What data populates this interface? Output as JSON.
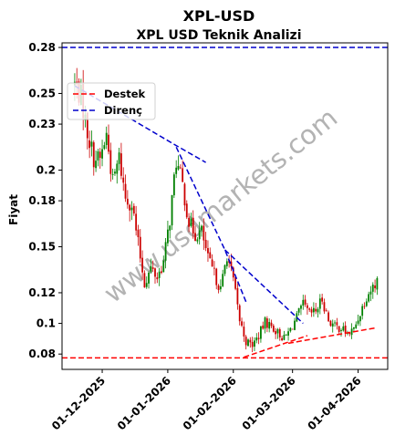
{
  "chart_data": {
    "type": "candlestick",
    "title": "XPL-USD",
    "subtitle": "XPL USD Teknik Analizi",
    "ylabel": "Fiyat",
    "xlabel": "",
    "watermark": "www.usdmarkets.com",
    "ylim": [
      0.07,
      0.283
    ],
    "x_start": "2025-11-12",
    "x_end": "2026-04-15",
    "y_ticks": [
      {
        "value": 0.08,
        "label": "0.08"
      },
      {
        "value": 0.1,
        "label": "0.1"
      },
      {
        "value": 0.12,
        "label": "0.12"
      },
      {
        "value": 0.15,
        "label": "0.15"
      },
      {
        "value": 0.18,
        "label": "0.18"
      },
      {
        "value": 0.2,
        "label": "0.2"
      },
      {
        "value": 0.23,
        "label": "0.23"
      },
      {
        "value": 0.25,
        "label": "0.25"
      },
      {
        "value": 0.28,
        "label": "0.28"
      }
    ],
    "x_ticks": [
      {
        "date": "2025-12-01",
        "label": "01-12-2025"
      },
      {
        "date": "2026-01-01",
        "label": "01-01-2026"
      },
      {
        "date": "2026-02-01",
        "label": "01-02-2026"
      },
      {
        "date": "2026-03-01",
        "label": "01-03-2026"
      },
      {
        "date": "2026-04-01",
        "label": "01-04-2026"
      }
    ],
    "legend": {
      "placement": "upper-left",
      "entries": [
        {
          "name": "Destek",
          "color": "#ff0000",
          "style": "dashed"
        },
        {
          "name": "Direnç",
          "color": "#0000cc",
          "style": "dashed"
        }
      ]
    },
    "colors": {
      "up": "#008000",
      "down": "#cc0000",
      "support": "#ff0000",
      "resistance": "#0000cc"
    },
    "horizontal_lines": [
      {
        "name": "Direnç",
        "y": 0.28,
        "color": "#0000cc"
      },
      {
        "name": "Destek",
        "y": 0.0775,
        "color": "#ff0000"
      }
    ],
    "trend_lines": [
      {
        "name": "Direnç",
        "color": "#0000cc",
        "points": [
          [
            "2025-11-18",
            0.255
          ],
          [
            "2026-01-05",
            0.216
          ],
          [
            "2026-01-19",
            0.205
          ]
        ]
      },
      {
        "name": "Direnç",
        "color": "#0000cc",
        "points": [
          [
            "2026-01-05",
            0.215
          ],
          [
            "2026-01-28",
            0.148
          ],
          [
            "2026-02-07",
            0.114
          ]
        ]
      },
      {
        "name": "Direnç",
        "color": "#0000cc",
        "points": [
          [
            "2026-01-28",
            0.148
          ],
          [
            "2026-03-06",
            0.1
          ]
        ]
      },
      {
        "name": "Destek",
        "color": "#ff0000",
        "points": [
          [
            "2026-02-06",
            0.078
          ],
          [
            "2026-03-08",
            0.092
          ]
        ]
      },
      {
        "name": "Destek",
        "color": "#ff0000",
        "points": [
          [
            "2026-02-27",
            0.087
          ],
          [
            "2026-04-09",
            0.097
          ]
        ]
      }
    ],
    "closes": [
      [
        "2025-11-18",
        0.256
      ],
      [
        "2025-11-21",
        0.248
      ],
      [
        "2025-11-24",
        0.225
      ],
      [
        "2025-11-27",
        0.208
      ],
      [
        "2025-11-30",
        0.207
      ],
      [
        "2025-12-03",
        0.223
      ],
      [
        "2025-12-06",
        0.192
      ],
      [
        "2025-12-09",
        0.208
      ],
      [
        "2025-12-12",
        0.182
      ],
      [
        "2025-12-15",
        0.178
      ],
      [
        "2025-12-18",
        0.152
      ],
      [
        "2025-12-21",
        0.126
      ],
      [
        "2025-12-24",
        0.136
      ],
      [
        "2025-12-27",
        0.13
      ],
      [
        "2025-12-30",
        0.14
      ],
      [
        "2026-01-02",
        0.168
      ],
      [
        "2026-01-05",
        0.206
      ],
      [
        "2026-01-08",
        0.19
      ],
      [
        "2026-01-11",
        0.166
      ],
      [
        "2026-01-14",
        0.158
      ],
      [
        "2026-01-17",
        0.16
      ],
      [
        "2026-01-20",
        0.142
      ],
      [
        "2026-01-23",
        0.132
      ],
      [
        "2026-01-26",
        0.122
      ],
      [
        "2026-01-29",
        0.145
      ],
      [
        "2026-02-01",
        0.128
      ],
      [
        "2026-02-04",
        0.102
      ],
      [
        "2026-02-07",
        0.088
      ],
      [
        "2026-02-10",
        0.086
      ],
      [
        "2026-02-13",
        0.092
      ],
      [
        "2026-02-16",
        0.101
      ],
      [
        "2026-02-19",
        0.098
      ],
      [
        "2026-02-22",
        0.094
      ],
      [
        "2026-02-25",
        0.09
      ],
      [
        "2026-02-28",
        0.096
      ],
      [
        "2026-03-03",
        0.104
      ],
      [
        "2026-03-06",
        0.112
      ],
      [
        "2026-03-09",
        0.106
      ],
      [
        "2026-03-12",
        0.108
      ],
      [
        "2026-03-15",
        0.116
      ],
      [
        "2026-03-18",
        0.102
      ],
      [
        "2026-03-21",
        0.098
      ],
      [
        "2026-03-24",
        0.097
      ],
      [
        "2026-03-27",
        0.093
      ],
      [
        "2026-03-30",
        0.096
      ],
      [
        "2026-04-02",
        0.107
      ],
      [
        "2026-04-05",
        0.118
      ],
      [
        "2026-04-08",
        0.124
      ],
      [
        "2026-04-10",
        0.128
      ]
    ]
  }
}
